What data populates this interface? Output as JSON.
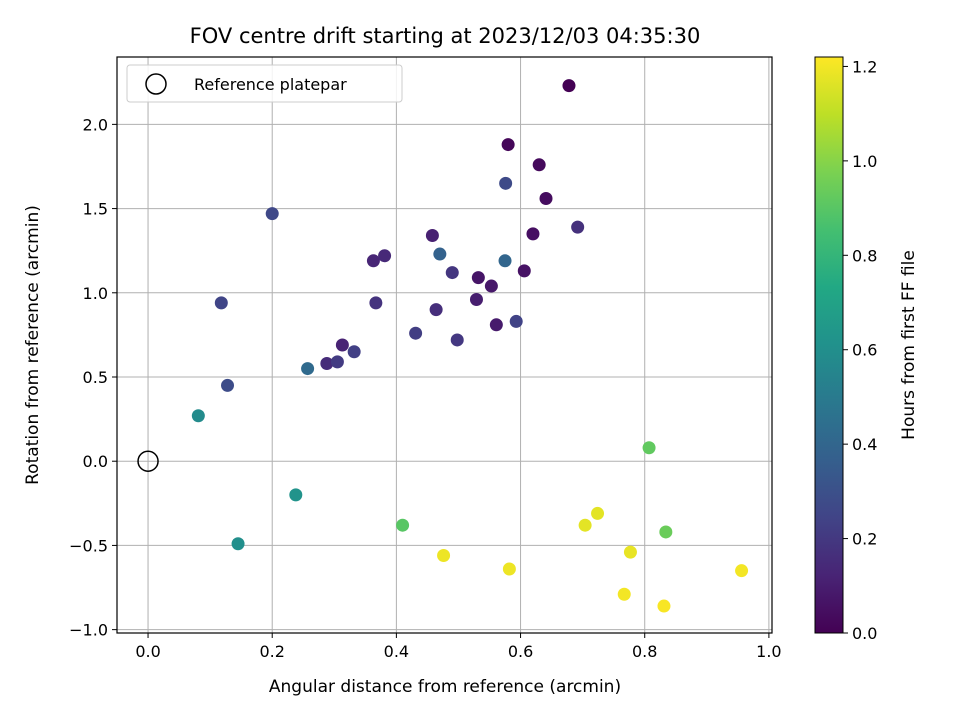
{
  "chart_data": {
    "type": "scatter",
    "title": "FOV centre drift starting at 2023/12/03 04:35:30",
    "xlabel": "Angular distance from reference (arcmin)",
    "ylabel": "Rotation from reference (arcmin)",
    "xlim": [
      -0.05,
      1.005
    ],
    "ylim": [
      -1.02,
      2.4
    ],
    "xticks": [
      0.0,
      0.2,
      0.4,
      0.6,
      0.8,
      1.0
    ],
    "xtick_labels": [
      "0.0",
      "0.2",
      "0.4",
      "0.6",
      "0.8",
      "1.0"
    ],
    "yticks": [
      -1.0,
      -0.5,
      0.0,
      0.5,
      1.0,
      1.5,
      2.0
    ],
    "ytick_labels": [
      "−1.0",
      "−0.5",
      "0.0",
      "0.5",
      "1.0",
      "1.5",
      "2.0"
    ],
    "grid": true,
    "legend": {
      "placement": "top-left",
      "entries": [
        "Reference platepar"
      ]
    },
    "reference_point": {
      "x": 0.0,
      "y": 0.0,
      "marker": "open-circle"
    },
    "colorbar": {
      "label": "Hours from first FF file",
      "colormap": "viridis",
      "range": [
        0.0,
        1.22
      ],
      "ticks": [
        0.0,
        0.2,
        0.4,
        0.6,
        0.8,
        1.0,
        1.2
      ],
      "tick_labels": [
        "0.0",
        "0.2",
        "0.4",
        "0.6",
        "0.8",
        "1.0",
        "1.2"
      ]
    },
    "points": [
      {
        "x": 0.678,
        "y": 2.23,
        "c": 0.0
      },
      {
        "x": 0.58,
        "y": 1.88,
        "c": 0.02
      },
      {
        "x": 0.63,
        "y": 1.76,
        "c": 0.03
      },
      {
        "x": 0.641,
        "y": 1.56,
        "c": 0.04
      },
      {
        "x": 0.62,
        "y": 1.35,
        "c": 0.05
      },
      {
        "x": 0.606,
        "y": 1.13,
        "c": 0.06
      },
      {
        "x": 0.532,
        "y": 1.09,
        "c": 0.07
      },
      {
        "x": 0.553,
        "y": 1.04,
        "c": 0.08
      },
      {
        "x": 0.561,
        "y": 0.81,
        "c": 0.09
      },
      {
        "x": 0.529,
        "y": 0.96,
        "c": 0.1
      },
      {
        "x": 0.458,
        "y": 1.34,
        "c": 0.11
      },
      {
        "x": 0.313,
        "y": 0.69,
        "c": 0.12
      },
      {
        "x": 0.363,
        "y": 1.19,
        "c": 0.13
      },
      {
        "x": 0.381,
        "y": 1.22,
        "c": 0.14
      },
      {
        "x": 0.288,
        "y": 0.58,
        "c": 0.15
      },
      {
        "x": 0.464,
        "y": 0.9,
        "c": 0.16
      },
      {
        "x": 0.692,
        "y": 1.39,
        "c": 0.17
      },
      {
        "x": 0.367,
        "y": 0.94,
        "c": 0.18
      },
      {
        "x": 0.49,
        "y": 1.12,
        "c": 0.19
      },
      {
        "x": 0.498,
        "y": 0.72,
        "c": 0.2
      },
      {
        "x": 0.305,
        "y": 0.59,
        "c": 0.21
      },
      {
        "x": 0.431,
        "y": 0.76,
        "c": 0.22
      },
      {
        "x": 0.332,
        "y": 0.65,
        "c": 0.23
      },
      {
        "x": 0.593,
        "y": 0.83,
        "c": 0.24
      },
      {
        "x": 0.118,
        "y": 0.94,
        "c": 0.25
      },
      {
        "x": 0.2,
        "y": 1.47,
        "c": 0.26
      },
      {
        "x": 0.576,
        "y": 1.65,
        "c": 0.27
      },
      {
        "x": 0.128,
        "y": 0.45,
        "c": 0.28
      },
      {
        "x": 0.47,
        "y": 1.23,
        "c": 0.38
      },
      {
        "x": 0.575,
        "y": 1.19,
        "c": 0.4
      },
      {
        "x": 0.257,
        "y": 0.55,
        "c": 0.42
      },
      {
        "x": 0.081,
        "y": 0.27,
        "c": 0.58
      },
      {
        "x": 0.145,
        "y": -0.49,
        "c": 0.6
      },
      {
        "x": 0.238,
        "y": -0.2,
        "c": 0.62
      },
      {
        "x": 0.41,
        "y": -0.38,
        "c": 0.9
      },
      {
        "x": 0.807,
        "y": 0.08,
        "c": 0.92
      },
      {
        "x": 0.834,
        "y": -0.42,
        "c": 0.94
      },
      {
        "x": 0.724,
        "y": -0.31,
        "c": 1.17
      },
      {
        "x": 0.704,
        "y": -0.38,
        "c": 1.17
      },
      {
        "x": 0.777,
        "y": -0.54,
        "c": 1.18
      },
      {
        "x": 0.476,
        "y": -0.56,
        "c": 1.19
      },
      {
        "x": 0.582,
        "y": -0.64,
        "c": 1.19
      },
      {
        "x": 0.956,
        "y": -0.65,
        "c": 1.2
      },
      {
        "x": 0.767,
        "y": -0.79,
        "c": 1.2
      },
      {
        "x": 0.831,
        "y": -0.86,
        "c": 1.21
      }
    ]
  }
}
